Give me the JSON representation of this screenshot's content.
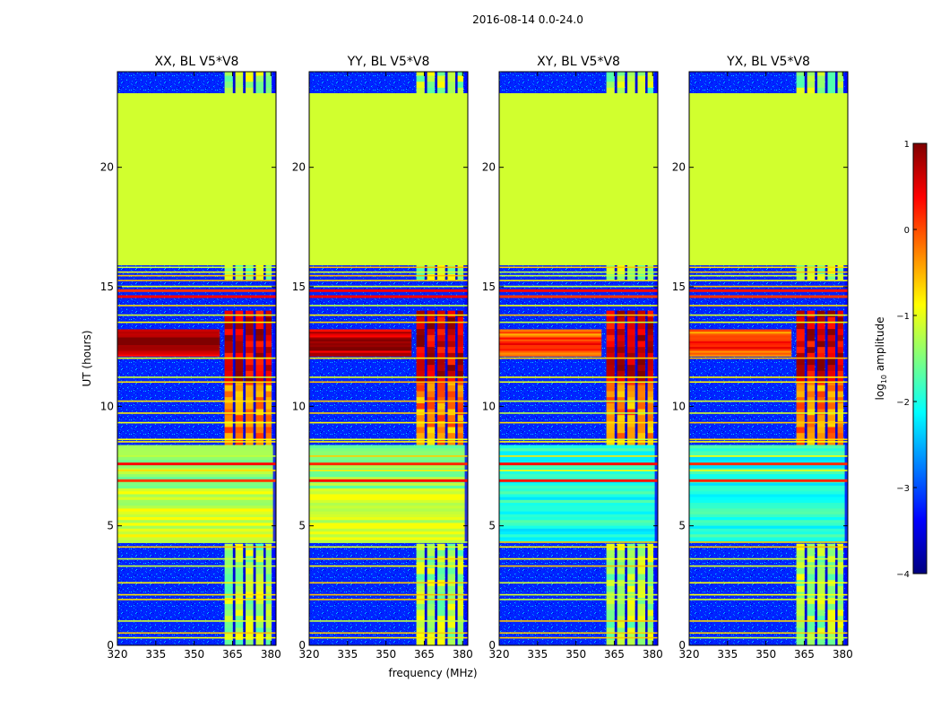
{
  "chart_data": {
    "type": "heatmap",
    "title": "2016-08-14 0.0-24.0",
    "xlabel": "frequency (MHz)",
    "ylabel": "UT (hours)",
    "xlim": [
      320,
      382
    ],
    "ylim": [
      0,
      24
    ],
    "x_ticks": [
      "320",
      "335",
      "350",
      "365",
      "380"
    ],
    "x_tick_values": [
      320,
      335,
      350,
      365,
      380
    ],
    "y_ticks": [
      "0",
      "5",
      "10",
      "15",
      "20"
    ],
    "y_tick_values": [
      0,
      5,
      10,
      15,
      20
    ],
    "panels": [
      {
        "name": "xx",
        "title": "XX, BL V5*V8",
        "show_xlabel": false
      },
      {
        "name": "yy",
        "title": "YY, BL V5*V8",
        "show_xlabel": true
      },
      {
        "name": "xy",
        "title": "XY, BL V5*V8",
        "show_xlabel": false
      },
      {
        "name": "yx",
        "title": "YX, BL V5*V8",
        "show_xlabel": false
      }
    ],
    "flagged_interval_hours": [
      15.9,
      23.1
    ],
    "bright_interval_hours": [
      12.1,
      13.2
    ],
    "rfi_band_mhz": [
      363,
      380
    ],
    "colorbar": {
      "label": "log10 amplitude",
      "label_main": "log",
      "label_sub": "10",
      "label_suffix": " amplitude",
      "min": -4,
      "max": 1,
      "ticks": [
        "1",
        "0",
        "−1",
        "−2",
        "−3",
        "−4"
      ],
      "tick_values": [
        1,
        0,
        -1,
        -2,
        -3,
        -4
      ],
      "colors": [
        "#00007f",
        "#0000ff",
        "#007fff",
        "#00ffff",
        "#7fff7f",
        "#ffff00",
        "#ff7f00",
        "#ff0000",
        "#7f0000"
      ]
    }
  }
}
